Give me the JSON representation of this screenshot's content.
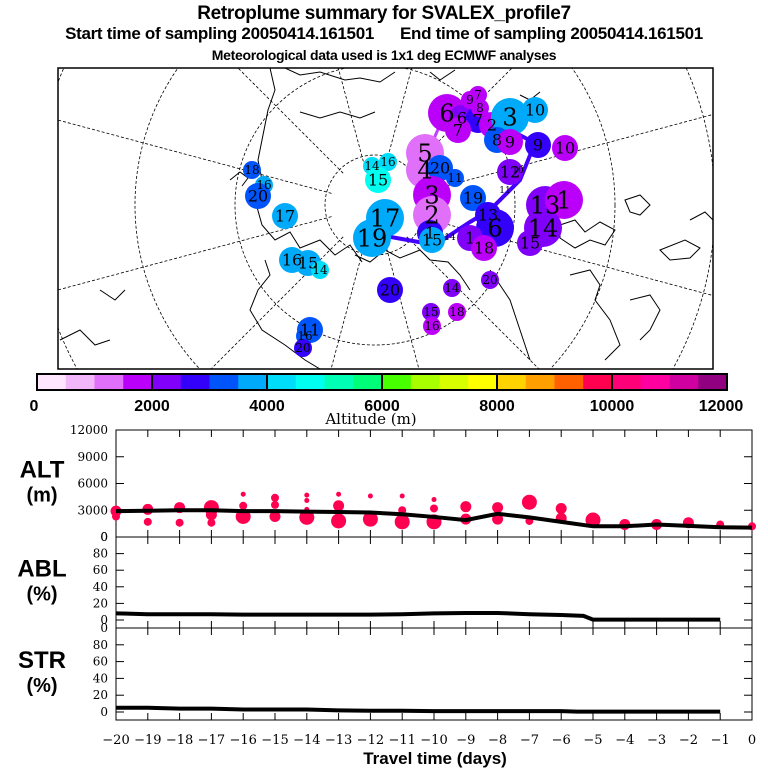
{
  "header": {
    "title": "Retroplume summary for SVALEX_profile7",
    "start_label": "Start time of sampling 20050414.161501",
    "end_label": "End time of sampling 20050414.161501",
    "met_label": "Meteorological data used is 1x1 deg ECMWF analyses"
  },
  "colorbar": {
    "label": "Altitude (m)",
    "ticks": [
      "0",
      "2000",
      "4000",
      "6000",
      "8000",
      "10000",
      "12000"
    ],
    "range": [
      0,
      12000
    ],
    "colors": [
      "#ffe6ff",
      "#f2b6fb",
      "#e070fa",
      "#bb00fa",
      "#8000fa",
      "#3300fa",
      "#0055fa",
      "#00aafa",
      "#00ddfa",
      "#00fff0",
      "#00ffb4",
      "#00ff78",
      "#48ff00",
      "#a8ff00",
      "#d8ff00",
      "#ffff00",
      "#ffd300",
      "#ffa000",
      "#ff6000",
      "#ff0050",
      "#ff0078",
      "#ff00a0",
      "#d000a0",
      "#900080"
    ]
  },
  "map": {
    "clusters": [
      {
        "label": "6",
        "alt": 1900,
        "size": 3
      },
      {
        "label": "6",
        "alt": 2000,
        "size": 2
      },
      {
        "label": "7",
        "alt": 2600,
        "size": 2
      },
      {
        "label": "7",
        "alt": 1800,
        "size": 2
      },
      {
        "label": "8",
        "alt": 1800,
        "size": 1
      },
      {
        "label": "9",
        "alt": 1800,
        "size": 1
      },
      {
        "label": "7",
        "alt": 1800,
        "size": 1
      },
      {
        "label": "2",
        "alt": 1800,
        "size": 2
      },
      {
        "label": "3",
        "alt": 3600,
        "size": 3
      },
      {
        "label": "10",
        "alt": 3700,
        "size": 2
      },
      {
        "label": "8",
        "alt": 3200,
        "size": 2
      },
      {
        "label": "9",
        "alt": 1900,
        "size": 2
      },
      {
        "label": "10",
        "alt": 1900,
        "size": 2
      },
      {
        "label": "9",
        "alt": 2800,
        "size": 2
      },
      {
        "label": "5",
        "alt": 1400,
        "size": 3
      },
      {
        "label": "4",
        "alt": 1400,
        "size": 3
      },
      {
        "label": "20",
        "alt": 3200,
        "size": 2
      },
      {
        "label": "11",
        "alt": 3200,
        "size": 1
      },
      {
        "label": "12",
        "alt": 2200,
        "size": 2
      },
      {
        "label": "10",
        "alt": null,
        "size": 0
      },
      {
        "label": "11",
        "alt": null,
        "size": 0
      },
      {
        "label": "14",
        "alt": 4400,
        "size": 1
      },
      {
        "label": "16",
        "alt": 4400,
        "size": 1
      },
      {
        "label": "15",
        "alt": 4600,
        "size": 2
      },
      {
        "label": "18",
        "alt": 3200,
        "size": 1
      },
      {
        "label": "16",
        "alt": 3700,
        "size": 1
      },
      {
        "label": "20",
        "alt": 3200,
        "size": 2
      },
      {
        "label": "17",
        "alt": 3600,
        "size": 2
      },
      {
        "label": "16",
        "alt": 3500,
        "size": 2
      },
      {
        "label": "15",
        "alt": 3600,
        "size": 2
      },
      {
        "label": "14",
        "alt": 4000,
        "size": 1
      },
      {
        "label": "17",
        "alt": 3700,
        "size": 3
      },
      {
        "label": "19",
        "alt": 3700,
        "size": 3
      },
      {
        "label": "3",
        "alt": 1900,
        "size": 3
      },
      {
        "label": "2",
        "alt": 1400,
        "size": 3
      },
      {
        "label": "1",
        "alt": 2600,
        "size": 2
      },
      {
        "label": "15",
        "alt": 3700,
        "size": 2
      },
      {
        "label": "14",
        "alt": null,
        "size": 0
      },
      {
        "label": "19",
        "alt": 3300,
        "size": 2
      },
      {
        "label": "13",
        "alt": 2700,
        "size": 2
      },
      {
        "label": "6",
        "alt": 2700,
        "size": 3
      },
      {
        "label": "1",
        "alt": 2200,
        "size": 2
      },
      {
        "label": "18",
        "alt": 1900,
        "size": 2
      },
      {
        "label": "13",
        "alt": 2000,
        "size": 3
      },
      {
        "label": "1",
        "alt": 1900,
        "size": 3
      },
      {
        "label": "14",
        "alt": 2200,
        "size": 3
      },
      {
        "label": "15",
        "alt": 2200,
        "size": 2
      },
      {
        "label": "20",
        "alt": 2700,
        "size": 2
      },
      {
        "label": "14",
        "alt": 2100,
        "size": 1
      },
      {
        "label": "20",
        "alt": 2200,
        "size": 1
      },
      {
        "label": "15",
        "alt": 2200,
        "size": 1
      },
      {
        "label": "16",
        "alt": 1900,
        "size": 1
      },
      {
        "label": "18",
        "alt": 1800,
        "size": 1
      },
      {
        "label": "11",
        "alt": 3100,
        "size": 2
      },
      {
        "label": "16",
        "alt": 3400,
        "size": 1
      },
      {
        "label": "20",
        "alt": 2600,
        "size": 1
      }
    ]
  },
  "chart_data": [
    {
      "type": "scatter",
      "panel": "ALT",
      "ylabel": "ALT\n(m)",
      "ylim": [
        0,
        12000
      ],
      "yticks": [
        "0",
        "3000",
        "6000",
        "9000",
        "12000"
      ],
      "xlim": [
        -20,
        0
      ],
      "series": [
        {
          "name": "mean altitude",
          "kind": "line",
          "x": [
            -20,
            -19,
            -18,
            -17,
            -16,
            -15,
            -14,
            -13,
            -12,
            -11,
            -10,
            -9,
            -8,
            -7,
            -6,
            -5,
            -4,
            -3,
            -2,
            -1,
            0
          ],
          "y": [
            2900,
            2950,
            3000,
            3000,
            2900,
            2900,
            2850,
            2800,
            2750,
            2550,
            2250,
            1900,
            2600,
            2200,
            1700,
            1200,
            1200,
            1400,
            1250,
            1100,
            1050
          ]
        },
        {
          "name": "clusters",
          "kind": "dots",
          "points": [
            [
              -20,
              2900,
              2
            ],
            [
              -20,
              2300,
              1
            ],
            [
              -19,
              3100,
              2
            ],
            [
              -19,
              1700,
              1
            ],
            [
              -18,
              3300,
              2
            ],
            [
              -18,
              1600,
              1
            ],
            [
              -17,
              3300,
              3
            ],
            [
              -17,
              2500,
              2
            ],
            [
              -17,
              1600,
              1
            ],
            [
              -16,
              4800,
              0
            ],
            [
              -16,
              3500,
              1
            ],
            [
              -16,
              2300,
              3
            ],
            [
              -15,
              4400,
              1
            ],
            [
              -15,
              3600,
              1
            ],
            [
              -15,
              2300,
              2
            ],
            [
              -14,
              4700,
              0
            ],
            [
              -14,
              4100,
              0
            ],
            [
              -14,
              3100,
              0
            ],
            [
              -14,
              2200,
              3
            ],
            [
              -13,
              4800,
              0
            ],
            [
              -13,
              3500,
              2
            ],
            [
              -13,
              1800,
              3
            ],
            [
              -12,
              4600,
              0
            ],
            [
              -12,
              2000,
              3
            ],
            [
              -11,
              4600,
              0
            ],
            [
              -11,
              3000,
              1
            ],
            [
              -11,
              1700,
              3
            ],
            [
              -10,
              4200,
              0
            ],
            [
              -10,
              3200,
              1
            ],
            [
              -10,
              1700,
              3
            ],
            [
              -9,
              3400,
              2
            ],
            [
              -9,
              2000,
              2
            ],
            [
              -8,
              3300,
              2
            ],
            [
              -8,
              2000,
              2
            ],
            [
              -7,
              3900,
              3
            ],
            [
              -7,
              1800,
              1
            ],
            [
              -6,
              3200,
              2
            ],
            [
              -6,
              2100,
              2
            ],
            [
              -5,
              1900,
              3
            ],
            [
              -4,
              1400,
              2
            ],
            [
              -3,
              1400,
              2
            ],
            [
              -2,
              1600,
              2
            ],
            [
              -1,
              1400,
              1
            ],
            [
              0,
              1200,
              1
            ]
          ]
        }
      ]
    },
    {
      "type": "line",
      "panel": "ABL",
      "ylabel": "ABL\n(%)",
      "ylim": [
        0,
        100
      ],
      "yticks": [
        "0",
        "20",
        "40",
        "60",
        "80",
        "0"
      ],
      "xlim": [
        -20,
        0
      ],
      "x": [
        -20,
        -19,
        -18,
        -17,
        -16,
        -15,
        -14,
        -13,
        -12,
        -11,
        -10,
        -9,
        -8,
        -7,
        -6,
        -5.3,
        -5,
        -4,
        -3,
        -2,
        -1
      ],
      "values": [
        8,
        7,
        7,
        7,
        6.5,
        6.5,
        6.5,
        6.5,
        6.5,
        7,
        8,
        8.5,
        8.5,
        7,
        6,
        5,
        0.5,
        0.5,
        0.5,
        0.5,
        0.5
      ]
    },
    {
      "type": "line",
      "panel": "STR",
      "ylabel": "STR\n(%)",
      "ylim": [
        0,
        100
      ],
      "yticks": [
        "0",
        "20",
        "40",
        "60",
        "80",
        "0"
      ],
      "xlim": [
        -20,
        0
      ],
      "xlabel": "Travel time (days)",
      "xticks": [
        "-20",
        "-19",
        "-18",
        "-17",
        "-16",
        "-15",
        "-14",
        "-13",
        "-12",
        "-11",
        "-10",
        "-9",
        "-8",
        "-7",
        "-6",
        "-5",
        "-4",
        "-3",
        "-2",
        "-1",
        "0"
      ],
      "x": [
        -20,
        -19,
        -18,
        -17,
        -16,
        -15,
        -14,
        -13,
        -12,
        -11,
        -10,
        -9,
        -8,
        -7,
        -6,
        -5.5,
        -5,
        -4,
        -3,
        -2,
        -1
      ],
      "values": [
        5,
        5,
        4,
        4,
        3,
        3,
        3,
        2,
        1.5,
        1.5,
        1,
        1,
        1,
        1,
        1,
        0.5,
        0.5,
        0.5,
        0.5,
        0.5,
        0.5
      ]
    }
  ]
}
